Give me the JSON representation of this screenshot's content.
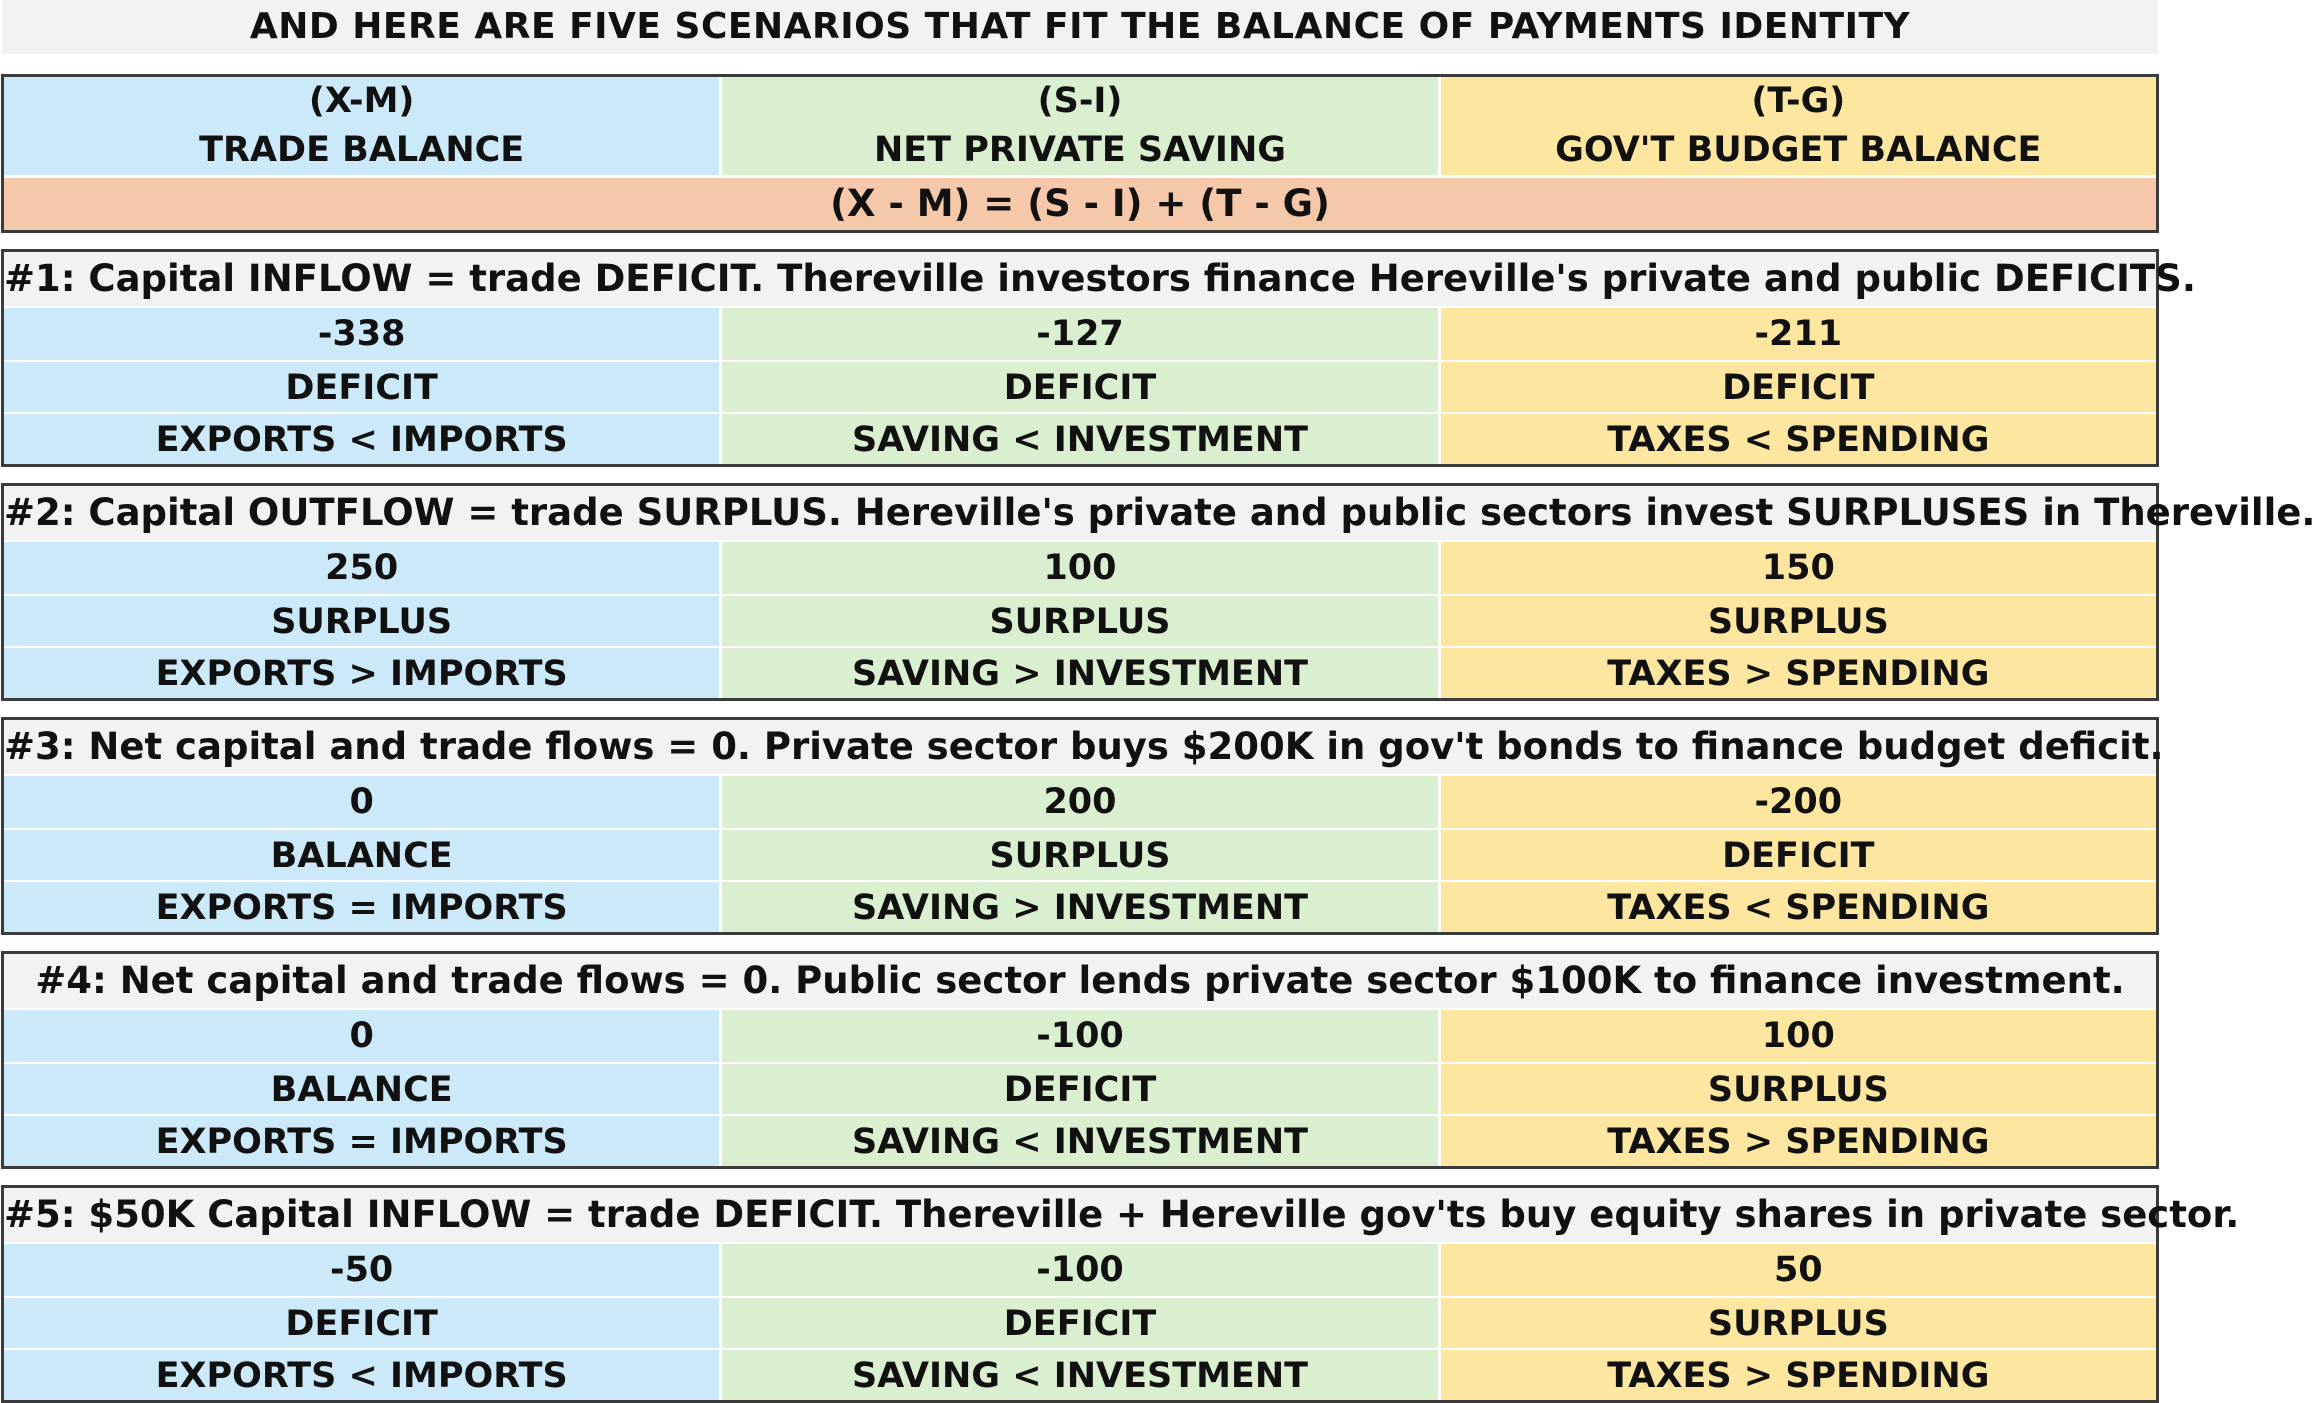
{
  "title": "AND HERE ARE FIVE SCENARIOS THAT FIT THE BALANCE OF PAYMENTS IDENTITY",
  "header": {
    "columns": [
      {
        "symbol": "(X-M)",
        "label": "TRADE BALANCE",
        "color": "#cbe9f8"
      },
      {
        "symbol": "(S-I)",
        "label": "NET PRIVATE SAVING",
        "color": "#d9efcf"
      },
      {
        "symbol": "(T-G)",
        "label": "GOV'T BUDGET BALANCE",
        "color": "#fde69f"
      }
    ],
    "equation": "(X - M) = (S - I) + (T - G)",
    "equation_color": "#f6c8aa"
  },
  "scenarios": [
    {
      "title": "#1: Capital INFLOW = trade DEFICIT. Thereville investors finance Hereville's private and public DEFICITS.",
      "values": [
        "-338",
        "-127",
        "-211"
      ],
      "status": [
        "DEFICIT",
        "DEFICIT",
        "DEFICIT"
      ],
      "relations": [
        "EXPORTS < IMPORTS",
        "SAVING < INVESTMENT",
        "TAXES < SPENDING"
      ]
    },
    {
      "title": "#2: Capital OUTFLOW = trade SURPLUS. Hereville's private and public sectors invest SURPLUSES in Thereville.",
      "values": [
        "250",
        "100",
        "150"
      ],
      "status": [
        "SURPLUS",
        "SURPLUS",
        "SURPLUS"
      ],
      "relations": [
        "EXPORTS > IMPORTS",
        "SAVING > INVESTMENT",
        "TAXES > SPENDING"
      ]
    },
    {
      "title": "#3: Net capital and trade flows = 0. Private sector buys $200K in gov't bonds to finance budget deficit.",
      "values": [
        "0",
        "200",
        "-200"
      ],
      "status": [
        "BALANCE",
        "SURPLUS",
        "DEFICIT"
      ],
      "relations": [
        "EXPORTS = IMPORTS",
        "SAVING > INVESTMENT",
        "TAXES < SPENDING"
      ]
    },
    {
      "title": "#4: Net capital and trade flows = 0. Public sector lends private sector $100K to finance investment.",
      "values": [
        "0",
        "-100",
        "100"
      ],
      "status": [
        "BALANCE",
        "DEFICIT",
        "SURPLUS"
      ],
      "relations": [
        "EXPORTS = IMPORTS",
        "SAVING < INVESTMENT",
        "TAXES > SPENDING"
      ]
    },
    {
      "title": "#5: $50K Capital INFLOW = trade DEFICIT. Thereville + Hereville gov'ts buy equity shares in private sector.",
      "values": [
        "-50",
        "-100",
        "50"
      ],
      "status": [
        "DEFICIT",
        "DEFICIT",
        "SURPLUS"
      ],
      "relations": [
        "EXPORTS < IMPORTS",
        "SAVING < INVESTMENT",
        "TAXES > SPENDING"
      ]
    }
  ]
}
